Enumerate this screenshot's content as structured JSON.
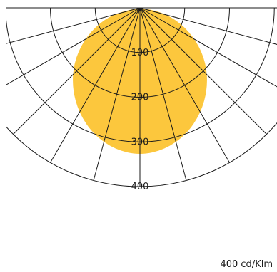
{
  "chart_data": {
    "type": "polar-area",
    "description_units": "cd/Klm",
    "radial_ticks": [
      "100",
      "200",
      "300",
      "400"
    ],
    "radial_max": 400,
    "angle_step_deg": 15,
    "unit_label": "400 cd/Klm",
    "series": [
      {
        "color": "#fcc73d",
        "angles_deg": [
          0,
          10,
          20,
          30,
          40,
          50,
          60,
          70,
          80,
          90
        ],
        "values": [
          330,
          322,
          302,
          272,
          235,
          193,
          145,
          95,
          45,
          0
        ]
      }
    ],
    "colors": {
      "fill": "#fcc73d",
      "grid": "#1a1a1a",
      "background": "#ffffff"
    }
  }
}
